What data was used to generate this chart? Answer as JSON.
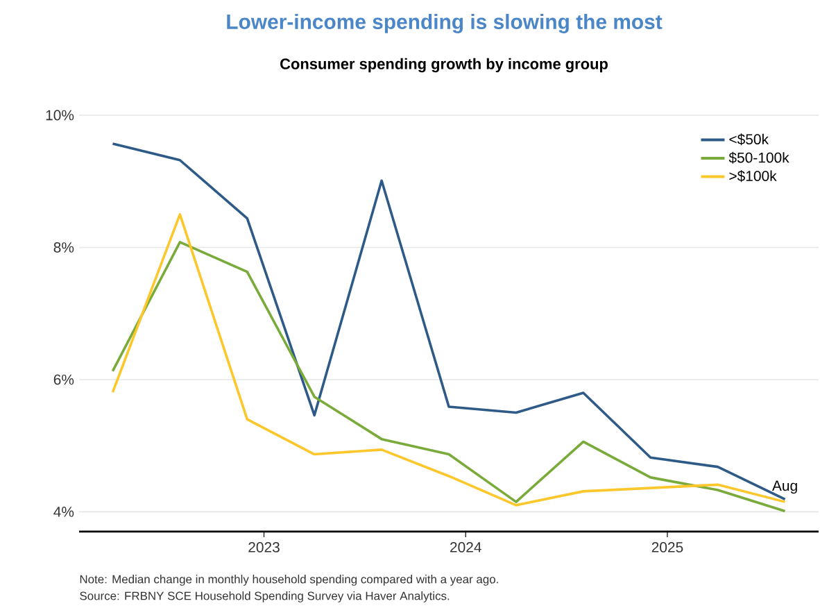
{
  "chart_data": {
    "type": "line",
    "title": "Lower-income spending is slowing the most",
    "subtitle": "Consumer spending growth by income group",
    "x": [
      "2022-04",
      "2022-08",
      "2022-12",
      "2023-04",
      "2023-08",
      "2023-12",
      "2024-04",
      "2024-08",
      "2024-12",
      "2025-04",
      "2025-08"
    ],
    "series": [
      {
        "name": "<$50k",
        "color": "#2e5a88",
        "values": [
          9.57,
          9.32,
          8.44,
          5.46,
          9.01,
          5.59,
          5.5,
          5.8,
          4.82,
          4.68,
          4.19
        ]
      },
      {
        "name": "$50-100k",
        "color": "#7aab3a",
        "values": [
          6.13,
          8.08,
          7.63,
          5.74,
          5.1,
          4.87,
          4.15,
          5.06,
          4.52,
          4.33,
          4.01
        ]
      },
      {
        "name": ">$100k",
        "color": "#fcc72b",
        "values": [
          5.81,
          8.5,
          5.4,
          4.87,
          4.94,
          4.54,
          4.1,
          4.31,
          4.36,
          4.41,
          4.15
        ]
      }
    ],
    "xlim": [
      "2022-02",
      "2025-10"
    ],
    "xticks": [
      "2023",
      "2024",
      "2025"
    ],
    "ylim": [
      3.7,
      10
    ],
    "yticks": [
      {
        "value": 4,
        "label": "4%"
      },
      {
        "value": 6,
        "label": "6%"
      },
      {
        "value": 8,
        "label": "8%"
      },
      {
        "value": 10,
        "label": "10%"
      }
    ],
    "grid": "y",
    "legend": "top right",
    "marker": "none",
    "line_style": "solid",
    "annotations": [
      {
        "text": "Aug",
        "x": "2025-08",
        "y": 4.19
      },
      "Note: Median change in monthly household spending compared with a year ago.",
      "Source: FRBNY SCE Household Spending Survey via Haver Analytics."
    ]
  }
}
